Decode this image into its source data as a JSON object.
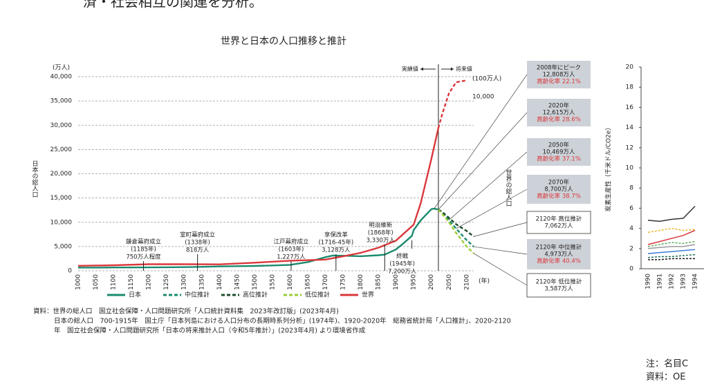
{
  "header_text": "済・社会相互の関連を分析。",
  "chart_data": [
    {
      "type": "line",
      "title": "世界と日本の人口推移と推計",
      "y_label": "日本の総人口",
      "y_unit": "(万人)",
      "y2_label": "世界の総人口",
      "y2_unit": "(100万人)",
      "x_unit": "(年)",
      "xlim": [
        1000,
        2120
      ],
      "xticks": [
        1000,
        1050,
        1100,
        1150,
        1200,
        1250,
        1300,
        1350,
        1400,
        1450,
        1500,
        1550,
        1600,
        1650,
        1700,
        1750,
        1800,
        1850,
        1900,
        1950,
        2000,
        2050,
        2100
      ],
      "ylim": [
        0,
        40000
      ],
      "yticks": [
        0,
        {
          "value": 5000,
          "label": "5,000"
        },
        {
          "value": 10000,
          "label": "10,000"
        },
        {
          "value": 15000,
          "label": "15,000"
        },
        {
          "value": 20000,
          "label": "20,000"
        },
        {
          "value": 25000,
          "label": "25,000"
        },
        {
          "value": 30000,
          "label": "30,000"
        },
        {
          "value": 35000,
          "label": "35,000"
        },
        {
          "value": 40000,
          "label": "40,000"
        }
      ],
      "y2lim": [
        0,
        10600
      ],
      "y2ticks": [
        {
          "value": 10000,
          "label": "10,000"
        }
      ],
      "grid": true,
      "forecast_from": 2020,
      "past_label": "実績値",
      "future_label": "将来値",
      "series": [
        {
          "name": "日本",
          "color": "#1a8a6e",
          "dash": false,
          "x": [
            1000,
            1050,
            1100,
            1150,
            1200,
            1250,
            1300,
            1350,
            1400,
            1450,
            1500,
            1550,
            1600,
            1650,
            1700,
            1721,
            1750,
            1800,
            1850,
            1868,
            1900,
            1920,
            1945,
            1950,
            1970,
            2000,
            2008,
            2020
          ],
          "values": [
            650,
            660,
            680,
            690,
            700,
            720,
            760,
            818,
            900,
            950,
            1000,
            1100,
            1227,
            1800,
            2800,
            3128,
            3100,
            3000,
            3200,
            3330,
            4400,
            5600,
            7200,
            8400,
            10400,
            12693,
            12808,
            12615
          ]
        },
        {
          "name": "中位推計",
          "color": "#1a8a6e",
          "dash": true,
          "x": [
            2020,
            2030,
            2050,
            2070,
            2100,
            2120
          ],
          "values": [
            12615,
            12000,
            10469,
            8700,
            6300,
            4973
          ]
        },
        {
          "name": "高位推計",
          "color": "#1d4d2d",
          "dash": true,
          "x": [
            2020,
            2030,
            2050,
            2070,
            2100,
            2120
          ],
          "values": [
            12615,
            12200,
            10900,
            9600,
            8200,
            7062
          ]
        },
        {
          "name": "低位推計",
          "color": "#9acd32",
          "dash": true,
          "x": [
            2020,
            2030,
            2050,
            2070,
            2100,
            2120
          ],
          "values": [
            12615,
            11800,
            10000,
            7800,
            5000,
            3587
          ]
        },
        {
          "name": "世界",
          "color": "#d9373b",
          "dash": false,
          "axis": "y2",
          "x": [
            1000,
            1100,
            1200,
            1300,
            1400,
            1500,
            1600,
            1700,
            1750,
            1800,
            1850,
            1900,
            1950,
            1970,
            2000,
            2020,
            2030,
            2050,
            2070,
            2100
          ],
          "values": [
            270,
            300,
            360,
            360,
            350,
            440,
            550,
            610,
            790,
            980,
            1260,
            1650,
            2520,
            3700,
            6100,
            7800,
            8500,
            9700,
            10300,
            10400
          ]
        }
      ],
      "events": [
        {
          "x": 1185,
          "lines": [
            "鎌倉幕府成立",
            "(1185年)",
            "750万人程度"
          ]
        },
        {
          "x": 1338,
          "lines": [
            "室町幕府成立",
            "(1338年)",
            "818万人"
          ]
        },
        {
          "x": 1603,
          "lines": [
            "江戸幕府成立",
            "(1603年)",
            "1,227万人"
          ]
        },
        {
          "x": 1730,
          "lines": [
            "享保改革",
            "(1716-45年)",
            "3,128万人"
          ]
        },
        {
          "x": 1868,
          "lines": [
            "明治維新",
            "(1868年)",
            "3,330万人"
          ]
        },
        {
          "x": 1945,
          "lines": [
            "終戦",
            "(1945年)",
            "7,200万人"
          ]
        }
      ],
      "callouts": [
        {
          "x": 2008,
          "y": 12808,
          "lines": [
            "2008年にピーク",
            "12,808万人"
          ],
          "rate": "高齢化率 22.1%"
        },
        {
          "x": 2020,
          "y": 12615,
          "lines": [
            "2020年",
            "12,615万人"
          ],
          "rate": "高齢化率 28.6%"
        },
        {
          "x": 2050,
          "y": 10469,
          "lines": [
            "2050年",
            "10,469万人"
          ],
          "rate": "高齢化率 37.1%"
        },
        {
          "x": 2070,
          "y": 8700,
          "lines": [
            "2070年",
            "8,700万人"
          ],
          "rate": "高齢化率 38.7%"
        },
        {
          "x": 2120,
          "y": 7062,
          "lines": [
            "2120年 高位推計",
            "7,062万人"
          ]
        },
        {
          "x": 2120,
          "y": 4973,
          "lines": [
            "2120年 中位推計",
            "4,973万人"
          ],
          "rate": "高齢化率 40.4%"
        },
        {
          "x": 2120,
          "y": 3587,
          "lines": [
            "2120年 低位推計",
            "3,587万人"
          ]
        }
      ]
    },
    {
      "type": "line",
      "y_label": "炭素生産性（千米ドル/CO2e）",
      "categories": [
        "1990",
        "1991",
        "1992",
        "1993",
        "1994"
      ],
      "ylim": [
        0,
        20
      ],
      "yticks": [
        0,
        2,
        4,
        6,
        8,
        10,
        12,
        14,
        16,
        18,
        20
      ],
      "series": [
        {
          "color": "#333333",
          "dash": false,
          "values": [
            4.8,
            4.7,
            4.9,
            5.0,
            6.2
          ]
        },
        {
          "color": "#e8b52a",
          "dash": true,
          "values": [
            3.6,
            3.8,
            4.0,
            3.8,
            3.9
          ]
        },
        {
          "color": "#d9373b",
          "dash": false,
          "values": [
            2.4,
            2.7,
            3.0,
            3.3,
            3.8
          ]
        },
        {
          "color": "#5aa85a",
          "dash": true,
          "values": [
            2.2,
            2.4,
            2.6,
            2.5,
            2.7
          ]
        },
        {
          "color": "#999999",
          "dash": false,
          "values": [
            2.0,
            2.1,
            2.2,
            2.2,
            2.4
          ]
        },
        {
          "color": "#3a7dd8",
          "dash": false,
          "values": [
            1.5,
            1.6,
            1.7,
            1.8,
            1.9
          ]
        },
        {
          "color": "#1d6d5d",
          "dash": true,
          "values": [
            1.1,
            1.2,
            1.2,
            1.3,
            1.4
          ]
        },
        {
          "color": "#111111",
          "dash": true,
          "values": [
            0.9,
            0.9,
            1.0,
            1.0,
            1.0
          ]
        }
      ]
    }
  ],
  "source": [
    "資料：世界の総人口　国立社会保障・人口問題研究所「人口統計資料集　2023年改訂版」(2023年4月)",
    "日本の総人口　700-1915年　国土庁「日本列島における人口分布の長期時系列分析」(1974年)、1920-2020年　総務省統計局「人口推計」、2020-2120",
    "年　国立社会保障・人口問題研究所「日本の将来推計人口（令和5年推計）」(2023年4月) より環境省作成"
  ],
  "notes": [
    "注：名目C",
    "資料：OE"
  ]
}
